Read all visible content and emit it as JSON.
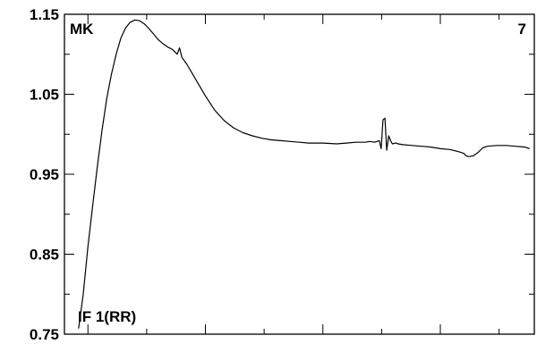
{
  "chart_data": {
    "type": "line",
    "title": "",
    "xlabel": "",
    "ylabel": "",
    "xlim": [
      0,
      100
    ],
    "ylim": [
      0.75,
      1.15
    ],
    "x_ticks_major": [
      5,
      30,
      55,
      80
    ],
    "x_ticks_minor": [
      17.5,
      42.5,
      67.5,
      92.5
    ],
    "y_ticks_major": [
      0.75,
      0.85,
      0.95,
      1.05,
      1.15
    ],
    "y_ticks_minor": [
      0.8,
      0.9,
      1.0,
      1.1
    ],
    "y_tick_labels": [
      "0.75",
      "0.85",
      "0.95",
      "1.05",
      "1.15"
    ],
    "grid": false,
    "annotations": {
      "top_left": "MK",
      "top_right": "7",
      "bottom_left": "IF 1(RR)"
    },
    "series": [
      {
        "color": "#000000",
        "x": [
          3.0,
          4.0,
          5.0,
          6.0,
          7.0,
          8.0,
          9.0,
          10.0,
          11.0,
          12.0,
          13.0,
          14.0,
          15.0,
          16.0,
          17.0,
          18.0,
          19.0,
          20.0,
          21.0,
          22.0,
          23.0,
          24.0,
          24.5,
          25.0,
          25.5,
          26.0,
          27.0,
          28.0,
          30.0,
          32.0,
          34.0,
          36.0,
          38.0,
          40.0,
          42.0,
          44.0,
          46.0,
          48.0,
          50.0,
          52.0,
          55.0,
          58.0,
          60.0,
          62.0,
          64.0,
          65.0,
          66.0,
          67.0,
          67.4,
          67.8,
          68.2,
          68.6,
          69.0,
          69.4,
          69.8,
          70.5,
          71.0,
          72.0,
          74.0,
          76.0,
          78.0,
          80.0,
          82.0,
          84.0,
          85.0,
          85.5,
          86.0,
          87.0,
          88.0,
          89.0,
          90.0,
          92.0,
          94.0,
          96.0,
          98.0,
          99.0
        ],
        "y": [
          0.757,
          0.8,
          0.86,
          0.91,
          0.96,
          1.005,
          1.045,
          1.075,
          1.1,
          1.12,
          1.133,
          1.14,
          1.143,
          1.142,
          1.138,
          1.132,
          1.125,
          1.118,
          1.113,
          1.109,
          1.106,
          1.1,
          1.108,
          1.096,
          1.092,
          1.088,
          1.078,
          1.068,
          1.048,
          1.03,
          1.017,
          1.008,
          1.002,
          0.998,
          0.995,
          0.993,
          0.992,
          0.991,
          0.99,
          0.989,
          0.989,
          0.988,
          0.989,
          0.99,
          0.99,
          0.991,
          0.99,
          0.992,
          0.982,
          1.018,
          1.02,
          0.98,
          0.998,
          0.992,
          0.988,
          0.989,
          0.988,
          0.987,
          0.986,
          0.985,
          0.984,
          0.982,
          0.981,
          0.978,
          0.976,
          0.973,
          0.972,
          0.973,
          0.977,
          0.983,
          0.985,
          0.986,
          0.986,
          0.985,
          0.984,
          0.982
        ]
      }
    ]
  }
}
